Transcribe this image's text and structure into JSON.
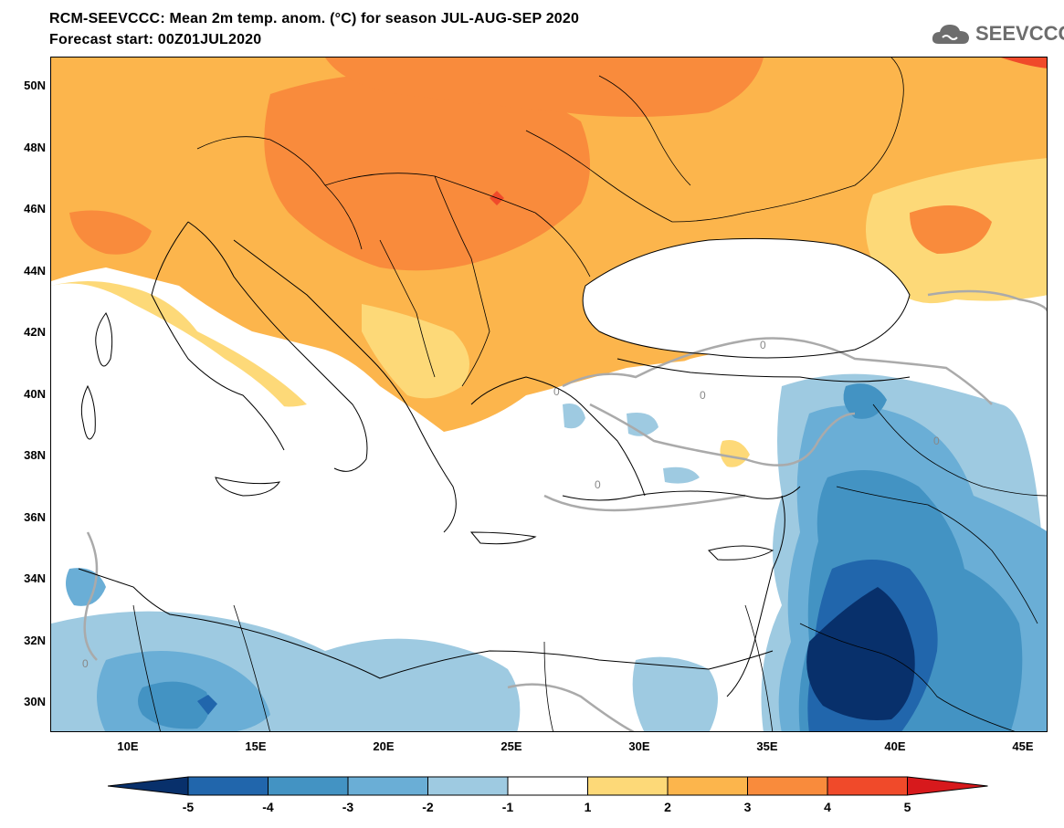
{
  "header": {
    "title_line1": "RCM-SEEVCCC: Mean 2m temp. anom. (°C) for season JUL-AUG-SEP 2020",
    "title_line2": "Forecast start: 00Z01JUL2020",
    "logo_text": "SEEVCCC",
    "logo_icon": "cloud-icon"
  },
  "map": {
    "lat_labels": [
      "50N",
      "48N",
      "46N",
      "44N",
      "42N",
      "40N",
      "38N",
      "36N",
      "34N",
      "32N",
      "30N"
    ],
    "lon_labels": [
      "10E",
      "15E",
      "20E",
      "25E",
      "30E",
      "35E",
      "40E",
      "45E"
    ],
    "contour_label": "0"
  },
  "colorbar": {
    "labels": [
      "-5",
      "-4",
      "-3",
      "-2",
      "-1",
      "1",
      "2",
      "3",
      "4",
      "5"
    ],
    "colors": [
      "#08306b",
      "#2166ac",
      "#4393c3",
      "#6aaed6",
      "#9ecae1",
      "#ffffff",
      "#fdd978",
      "#fcb54c",
      "#f98b3c",
      "#f04a2a",
      "#d7191c"
    ]
  },
  "palette": {
    "cold_1": "#9ecae1",
    "cold_2": "#6aaed6",
    "cold_3": "#4393c3",
    "cold_4": "#2166ac",
    "cold_5": "#08306b",
    "warm_1": "#fdd978",
    "warm_2": "#fcb54c",
    "warm_3": "#f98b3c",
    "warm_4": "#f04a2a",
    "contour": "#aaaaaa"
  }
}
